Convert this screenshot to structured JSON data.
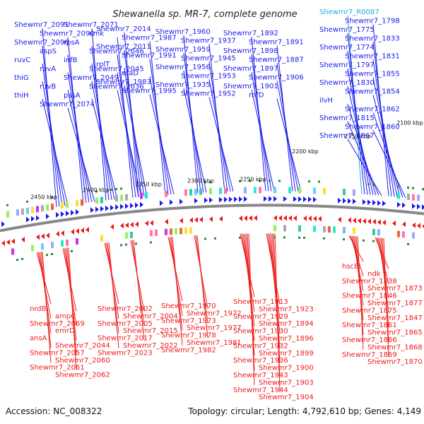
{
  "title": "Shewanella sp. MR-7, complete genome",
  "accession": "Accession: NC_008322",
  "summary": "Topology: circular; Length: 4,792,610 bp; Genes: 4,149",
  "colors": {
    "forward": "#1a1aee",
    "reverse": "#ee1a1a",
    "rna": "#22aadd",
    "backbone": "#888888",
    "ticks": "#2a8a2a"
  },
  "kbp_labels": [
    "2100 kbp",
    "2150 kbp",
    "2200 kbp",
    "2250 kbp",
    "2300 kbp",
    "2350 kbp",
    "2400 kbp",
    "2450 kbp"
  ],
  "top_labels": [
    "Shewmr7_R0087",
    "Shewmr7_1798",
    "Shewmr7_1775",
    "Shewmr7_1833",
    "Shewmr7_1774",
    "Shewmr7_1831",
    "Shewmr7_1797",
    "Shewmr7_1855",
    "Shewmr7_1830",
    "Shewmr7_1854",
    "ilvH",
    "Shewmr7_1862",
    "Shewmr7_1815",
    "Shewmr7_1860",
    "Shewmr7_1867",
    "Shewmr7_1892",
    "Shewmr7_1891",
    "Shewmr7_1898",
    "Shewmr7_1887",
    "Shewmr7_1897",
    "Shewmr7_1906",
    "Shewmr7_1901",
    "rnfD",
    "Shewmr7_1960",
    "Shewmr7_1937",
    "Shewmr7_1959",
    "Shewmr7_1945",
    "Shewmr7_1956",
    "Shewmr7_1953",
    "Shewmr7_1935",
    "Shewmr7_1952",
    "Shewmr7_2014",
    "Shewmr7_1987",
    "Shewmr7_2011",
    "Shewmr7_1991",
    "rplT",
    "araD",
    "Shewmr7_1983",
    "Shewmr7_1995",
    "Shewmr7_2071",
    "cmk",
    "rpsA",
    "Shewmr7_2046",
    "infB",
    "Shewmr7_2045",
    "Shewmr7_2049",
    "Shewmr7_2036",
    "pssA",
    "Shewmr7_2091",
    "Shewmr7_2090",
    "Shewmr7_2096",
    "aspS",
    "ruvC",
    "ruvA",
    "thiG",
    "ruvB",
    "thiH",
    "Shewmr7_2074"
  ],
  "bottom_labels": [
    "hscB",
    "ndk",
    "Shewmr7_1838",
    "Shewmr7_1873",
    "Shewmr7_1846",
    "Shewmr7_1877",
    "Shewmr7_1875",
    "Shewmr7_1847",
    "Shewmr7_1861",
    "Shewmr7_1865",
    "Shewmr7_1866",
    "Shewmr7_1868",
    "Shewmr7_1869",
    "Shewmr7_1870",
    "Shewmr7_1913",
    "Shewmr7_1923",
    "Shewmr7_1929",
    "Shewmr7_1894",
    "Shewmr7_1930",
    "Shewmr7_1896",
    "Shewmr7_1932",
    "Shewmr7_1899",
    "Shewmr7_1936",
    "Shewmr7_1900",
    "Shewmr7_1943",
    "Shewmr7_1903",
    "Shewmr7_1944",
    "Shewmr7_1904",
    "Shewmr7_1970",
    "Shewmr7_1972",
    "Shewmr7_1973",
    "Shewmr7_1977",
    "Shewmr7_1978",
    "Shewmr7_1981",
    "Shewmr7_1982",
    "Shewmr7_2002",
    "Shewmr7_2004",
    "Shewmr7_2005",
    "Shewmr7_2015",
    "Shewmr7_2017",
    "Shewmr7_2022",
    "Shewmr7_2023",
    "nrdB",
    "ampC",
    "Shewmr7_2069",
    "emrD",
    "ansA",
    "Shewmr7_2044",
    "Shewmr7_2057",
    "Shewmr7_2060",
    "Shewmr7_2061",
    "Shewmr7_2062"
  ]
}
